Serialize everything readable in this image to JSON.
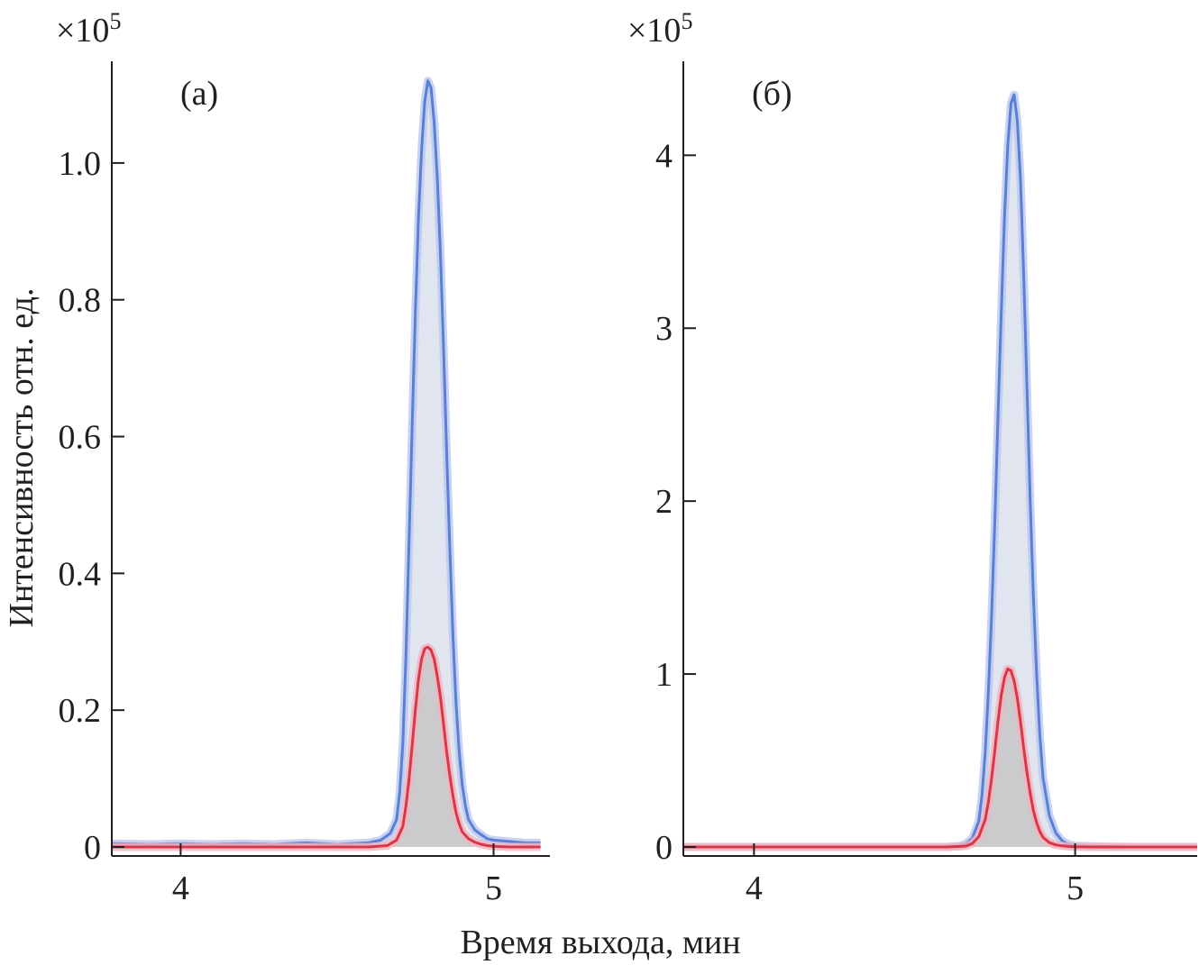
{
  "figure": {
    "ylabel": "Интенсивность отн. ед.",
    "xlabel": "Время выхода, мин"
  },
  "colors": {
    "blue_trace": "#5b7fd6",
    "blue_glow": "#b9c8ee",
    "blue_fill": "#dfe4ee",
    "red_trace": "#d9364a",
    "red_glow": "#f2b3bb",
    "red_fill": "#c9c6c8",
    "axis": "#231f20"
  },
  "chart_data": [
    {
      "type": "area",
      "panel_label": "(а)",
      "y_multiplier": "×10",
      "y_multiplier_exp": "5",
      "xlim": [
        3.78,
        5.18
      ],
      "ylim": [
        0,
        1.12
      ],
      "xticks": [
        4,
        5
      ],
      "xtick_labels": [
        "4",
        "5"
      ],
      "yticks": [
        0,
        0.2,
        0.4,
        0.6,
        0.8,
        1.0
      ],
      "ytick_labels": [
        "0",
        "0.2",
        "0.4",
        "0.6",
        "0.8",
        "1.0"
      ],
      "series": [
        {
          "color_key": "blue",
          "x": [
            3.78,
            3.9,
            4.0,
            4.1,
            4.2,
            4.3,
            4.4,
            4.5,
            4.6,
            4.64,
            4.67,
            4.69,
            4.7,
            4.71,
            4.72,
            4.73,
            4.74,
            4.75,
            4.76,
            4.77,
            4.78,
            4.79,
            4.8,
            4.81,
            4.82,
            4.83,
            4.84,
            4.85,
            4.86,
            4.87,
            4.88,
            4.89,
            4.9,
            4.91,
            4.92,
            4.94,
            4.96,
            4.98,
            5.0,
            5.05,
            5.1,
            5.15
          ],
          "y": [
            0.005,
            0.004,
            0.005,
            0.004,
            0.005,
            0.004,
            0.006,
            0.004,
            0.006,
            0.01,
            0.02,
            0.04,
            0.08,
            0.15,
            0.28,
            0.45,
            0.62,
            0.78,
            0.92,
            1.02,
            1.09,
            1.12,
            1.11,
            1.06,
            0.98,
            0.87,
            0.73,
            0.58,
            0.44,
            0.31,
            0.21,
            0.14,
            0.09,
            0.06,
            0.04,
            0.025,
            0.018,
            0.012,
            0.01,
            0.008,
            0.006,
            0.006
          ]
        },
        {
          "color_key": "red",
          "x": [
            3.78,
            3.9,
            4.0,
            4.1,
            4.2,
            4.3,
            4.4,
            4.5,
            4.6,
            4.66,
            4.69,
            4.71,
            4.72,
            4.73,
            4.74,
            4.75,
            4.76,
            4.77,
            4.78,
            4.79,
            4.8,
            4.81,
            4.82,
            4.83,
            4.84,
            4.85,
            4.86,
            4.87,
            4.88,
            4.89,
            4.9,
            4.92,
            4.94,
            4.96,
            4.98,
            5.0,
            5.05,
            5.1,
            5.15
          ],
          "y": [
            0.0,
            0.0,
            0.0,
            0.0,
            0.0,
            0.0,
            0.0,
            0.0,
            0.0,
            0.002,
            0.01,
            0.03,
            0.06,
            0.1,
            0.15,
            0.2,
            0.245,
            0.275,
            0.29,
            0.292,
            0.288,
            0.275,
            0.25,
            0.22,
            0.18,
            0.14,
            0.105,
            0.075,
            0.05,
            0.034,
            0.022,
            0.012,
            0.007,
            0.004,
            0.002,
            0.001,
            0.0,
            0.0,
            0.0
          ]
        }
      ]
    },
    {
      "type": "area",
      "panel_label": "(б)",
      "y_multiplier": "×10",
      "y_multiplier_exp": "5",
      "xlim": [
        3.78,
        5.38
      ],
      "ylim": [
        0,
        4.43
      ],
      "xticks": [
        4,
        5
      ],
      "xtick_labels": [
        "4",
        "5"
      ],
      "yticks": [
        0,
        1,
        2,
        3,
        4
      ],
      "ytick_labels": [
        "0",
        "1",
        "2",
        "3",
        "4"
      ],
      "series": [
        {
          "color_key": "blue",
          "x": [
            3.78,
            3.9,
            4.0,
            4.2,
            4.4,
            4.6,
            4.64,
            4.66,
            4.68,
            4.7,
            4.71,
            4.72,
            4.73,
            4.74,
            4.75,
            4.76,
            4.77,
            4.78,
            4.79,
            4.8,
            4.81,
            4.82,
            4.83,
            4.84,
            4.85,
            4.86,
            4.87,
            4.88,
            4.89,
            4.9,
            4.92,
            4.94,
            4.96,
            4.98,
            5.0,
            5.05,
            5.1,
            5.2,
            5.3,
            5.38
          ],
          "y": [
            0.0,
            0.0,
            0.0,
            0.0,
            0.0,
            0.0,
            0.005,
            0.02,
            0.05,
            0.15,
            0.3,
            0.55,
            0.9,
            1.35,
            1.9,
            2.5,
            3.1,
            3.65,
            4.05,
            4.3,
            4.35,
            4.2,
            3.85,
            3.3,
            2.65,
            2.0,
            1.45,
            1.0,
            0.65,
            0.4,
            0.18,
            0.08,
            0.035,
            0.015,
            0.008,
            0.004,
            0.002,
            0.0,
            0.0,
            0.0
          ]
        },
        {
          "color_key": "red",
          "x": [
            3.78,
            3.9,
            4.0,
            4.2,
            4.4,
            4.6,
            4.66,
            4.68,
            4.7,
            4.72,
            4.73,
            4.74,
            4.75,
            4.76,
            4.77,
            4.78,
            4.79,
            4.8,
            4.81,
            4.82,
            4.83,
            4.84,
            4.85,
            4.86,
            4.87,
            4.88,
            4.89,
            4.9,
            4.92,
            4.94,
            4.96,
            4.98,
            5.0,
            5.05,
            5.1,
            5.2,
            5.3,
            5.38
          ],
          "y": [
            0.0,
            0.0,
            0.0,
            0.0,
            0.0,
            0.0,
            0.005,
            0.02,
            0.06,
            0.16,
            0.26,
            0.4,
            0.56,
            0.73,
            0.88,
            0.98,
            1.03,
            1.02,
            0.96,
            0.86,
            0.72,
            0.57,
            0.43,
            0.31,
            0.21,
            0.14,
            0.09,
            0.055,
            0.025,
            0.012,
            0.006,
            0.003,
            0.001,
            0.0,
            0.0,
            0.0,
            0.0,
            0.0
          ]
        }
      ]
    }
  ]
}
